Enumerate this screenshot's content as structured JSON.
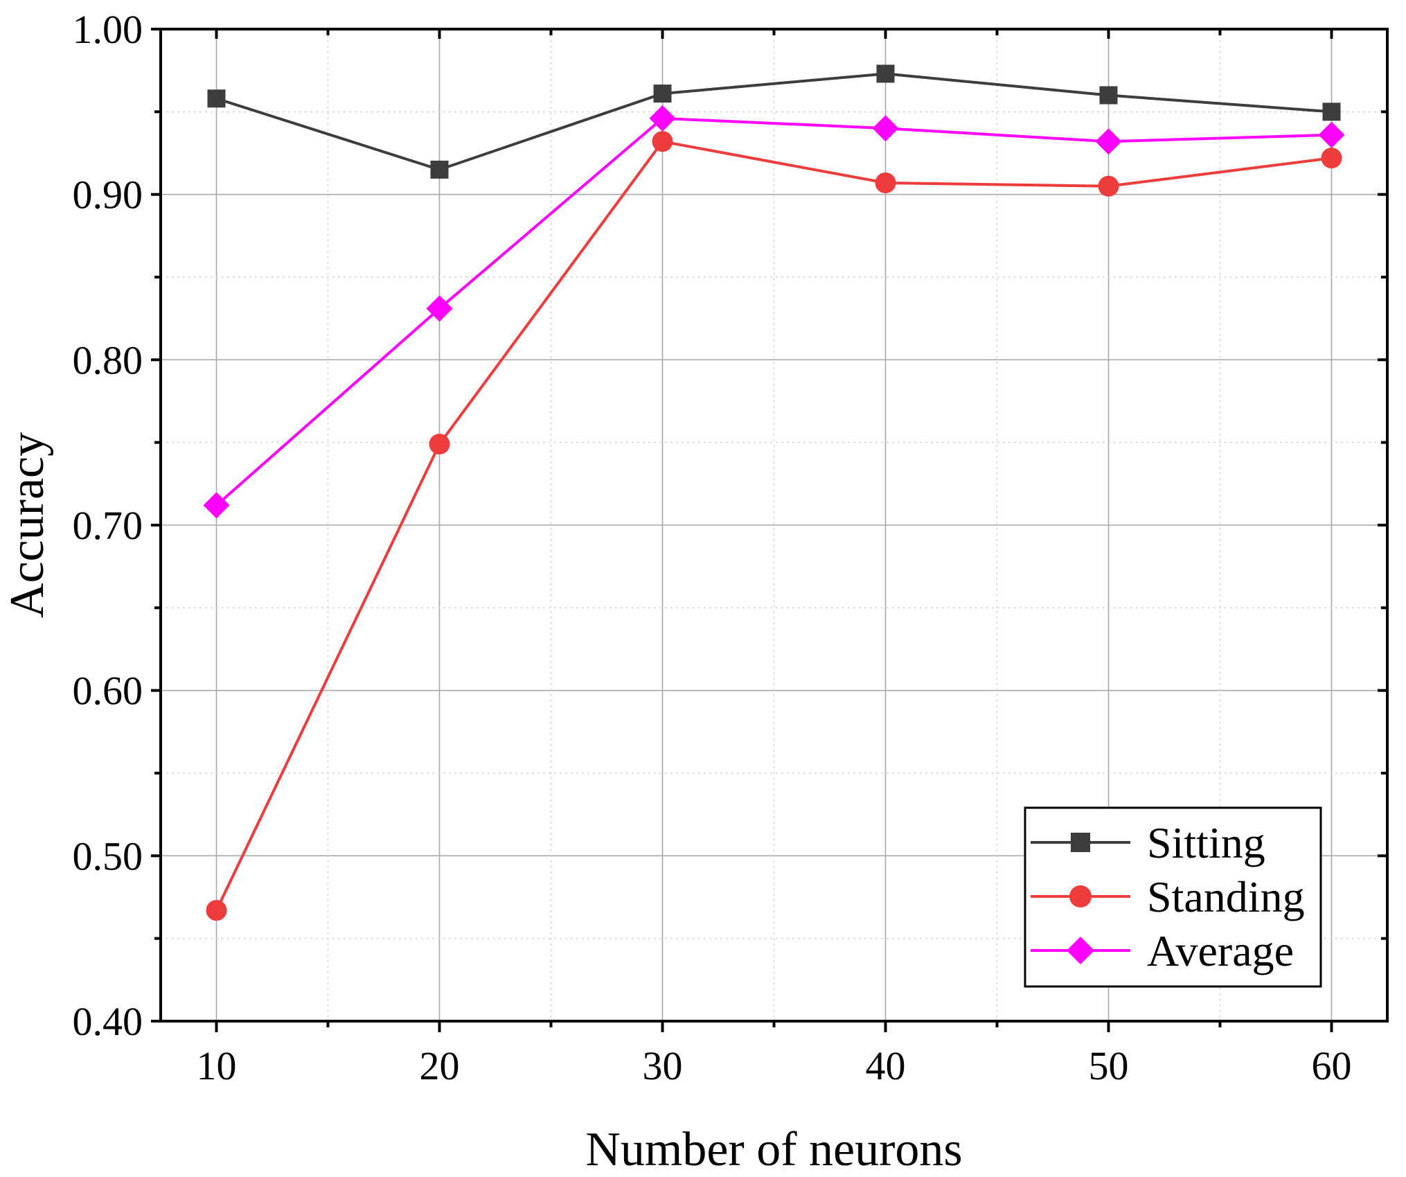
{
  "chart_data": {
    "type": "line",
    "title": "",
    "xlabel": "Number of neurons",
    "ylabel": "Accuracy",
    "x": [
      10,
      20,
      30,
      40,
      50,
      60
    ],
    "xticks": [
      10,
      20,
      30,
      40,
      50,
      60
    ],
    "xtick_labels": [
      "10",
      "20",
      "30",
      "40",
      "50",
      "60"
    ],
    "xlim": [
      7.5,
      62.5
    ],
    "yticks": [
      0.4,
      0.5,
      0.6,
      0.7,
      0.8,
      0.9,
      1.0
    ],
    "ytick_labels": [
      "0.40",
      "0.50",
      "0.60",
      "0.70",
      "0.80",
      "0.90",
      "1.00"
    ],
    "ylim": [
      0.4,
      1.0
    ],
    "grid": true,
    "legend_position": "bottom-right",
    "series": [
      {
        "name": "Sitting",
        "marker": "square",
        "color": "#3d3d3d",
        "values": [
          0.958,
          0.915,
          0.961,
          0.973,
          0.96,
          0.95
        ]
      },
      {
        "name": "Standing",
        "marker": "circle",
        "color": "#ee3b3b",
        "values": [
          0.467,
          0.749,
          0.932,
          0.907,
          0.905,
          0.922
        ]
      },
      {
        "name": "Average",
        "marker": "diamond",
        "color": "#ff00ff",
        "values": [
          0.712,
          0.831,
          0.946,
          0.94,
          0.932,
          0.936
        ]
      }
    ]
  }
}
